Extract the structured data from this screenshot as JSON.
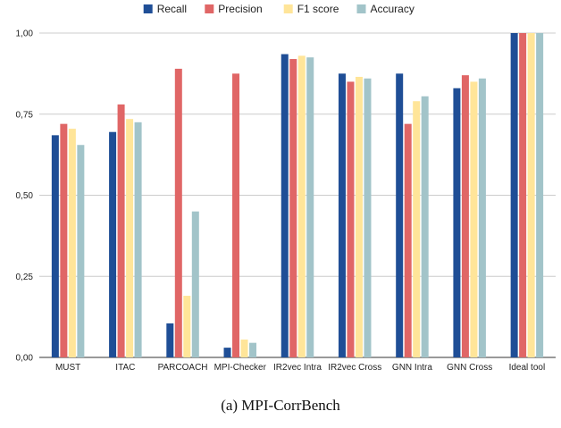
{
  "chart_data": {
    "type": "bar",
    "categories": [
      "MUST",
      "ITAC",
      "PARCOACH",
      "MPI-Checker",
      "IR2vec Intra",
      "IR2vec Cross",
      "GNN Intra",
      "GNN Cross",
      "Ideal tool"
    ],
    "series": [
      {
        "name": "Recall",
        "color": "#1f4e96",
        "values": [
          0.685,
          0.695,
          0.105,
          0.03,
          0.935,
          0.875,
          0.875,
          0.83,
          1.0
        ]
      },
      {
        "name": "Precision",
        "color": "#e06666",
        "values": [
          0.72,
          0.78,
          0.89,
          0.875,
          0.92,
          0.85,
          0.72,
          0.87,
          1.0
        ]
      },
      {
        "name": "F1 score",
        "color": "#ffe599",
        "values": [
          0.705,
          0.735,
          0.19,
          0.055,
          0.93,
          0.865,
          0.79,
          0.85,
          1.0
        ]
      },
      {
        "name": "Accuracy",
        "color": "#a2c4c9",
        "values": [
          0.655,
          0.725,
          0.45,
          0.045,
          0.925,
          0.86,
          0.805,
          0.86,
          1.0
        ]
      }
    ],
    "ylim": [
      0,
      1
    ],
    "yticks": [
      0,
      0.25,
      0.5,
      0.75,
      1.0
    ],
    "ytick_labels": [
      "0,00",
      "0,25",
      "0,50",
      "0,75",
      "1,00"
    ],
    "grid": true,
    "legend_position": "top-center",
    "title": "",
    "xlabel": "",
    "ylabel": ""
  },
  "caption": "(a)  MPI-CorrBench"
}
